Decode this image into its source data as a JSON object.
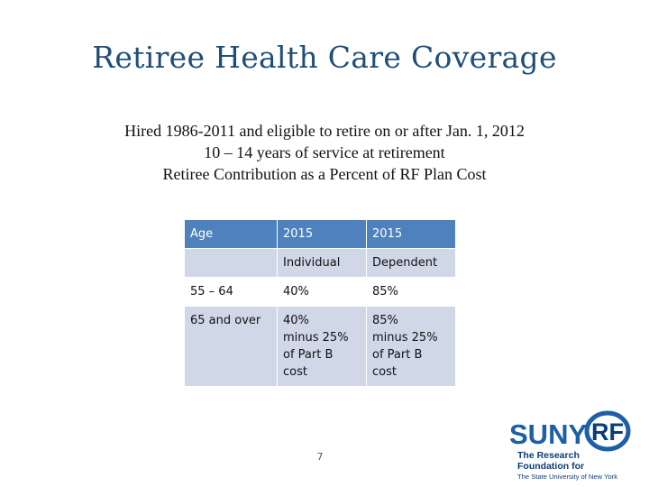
{
  "slide": {
    "title": "Retiree Health Care Coverage",
    "subtitle_lines": [
      "Hired 1986-2011 and eligible to retire on or after Jan. 1, 2012",
      "10 – 14 years of service at retirement",
      "Retiree Contribution as a Percent of RF Plan Cost"
    ],
    "page_number": "7"
  },
  "table": {
    "header": [
      "Age",
      "2015",
      "2015"
    ],
    "subheader": [
      "",
      "Individual",
      "Dependent"
    ],
    "rows": [
      [
        "55 – 64",
        "40%",
        "85%"
      ],
      [
        "65 and over",
        [
          "40%",
          "minus 25%",
          "of Part B",
          "cost"
        ],
        [
          "85%",
          "minus 25%",
          "of Part B",
          "cost"
        ]
      ]
    ]
  },
  "logo": {
    "wordmark": "SUNY",
    "mark": "RF",
    "line1": "The Research",
    "line2": "Foundation for",
    "line3": "The State University of New York",
    "colors": {
      "suny_blue": "#1f5fa8",
      "rf_blue": "#0a3d7a"
    }
  }
}
